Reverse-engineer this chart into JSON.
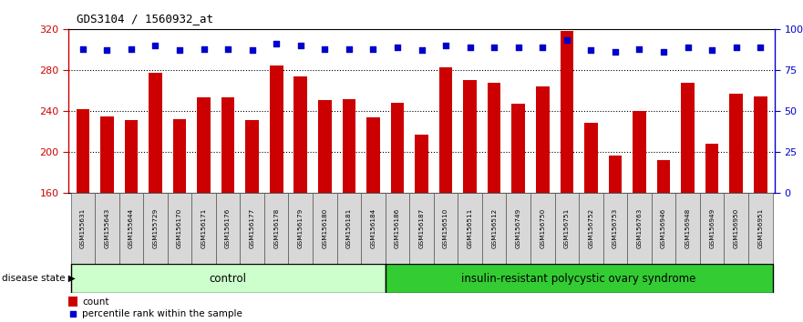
{
  "title": "GDS3104 / 1560932_at",
  "samples": [
    "GSM155631",
    "GSM155643",
    "GSM155644",
    "GSM155729",
    "GSM156170",
    "GSM156171",
    "GSM156176",
    "GSM156177",
    "GSM156178",
    "GSM156179",
    "GSM156180",
    "GSM156181",
    "GSM156184",
    "GSM156186",
    "GSM156187",
    "GSM156510",
    "GSM156511",
    "GSM156512",
    "GSM156749",
    "GSM156750",
    "GSM156751",
    "GSM156752",
    "GSM156753",
    "GSM156763",
    "GSM156946",
    "GSM156948",
    "GSM156949",
    "GSM156950",
    "GSM156951"
  ],
  "counts": [
    242,
    235,
    231,
    277,
    232,
    253,
    253,
    231,
    284,
    274,
    251,
    252,
    234,
    248,
    217,
    283,
    270,
    268,
    247,
    264,
    318,
    229,
    197,
    240,
    192,
    268,
    208,
    257,
    254
  ],
  "percentile_ranks": [
    88,
    87,
    88,
    90,
    87,
    88,
    88,
    87,
    91,
    90,
    88,
    88,
    88,
    89,
    87,
    90,
    89,
    89,
    89,
    89,
    93,
    87,
    86,
    88,
    86,
    89,
    87,
    89,
    89
  ],
  "group_labels": [
    "control",
    "insulin-resistant polycystic ovary syndrome"
  ],
  "group_split": 13,
  "bar_color": "#cc0000",
  "dot_color": "#0000cc",
  "ylim_left": [
    160,
    320
  ],
  "ylim_right": [
    0,
    100
  ],
  "yticks_left": [
    160,
    200,
    240,
    280,
    320
  ],
  "yticks_right": [
    0,
    25,
    50,
    75,
    100
  ],
  "ytick_labels_right": [
    "0",
    "25",
    "50",
    "75",
    "100%"
  ],
  "grid_values": [
    200,
    240,
    280
  ],
  "control_color": "#ccffcc",
  "disease_color": "#33cc33",
  "bg_color": "#ffffff",
  "label_area_color": "#d8d8d8"
}
